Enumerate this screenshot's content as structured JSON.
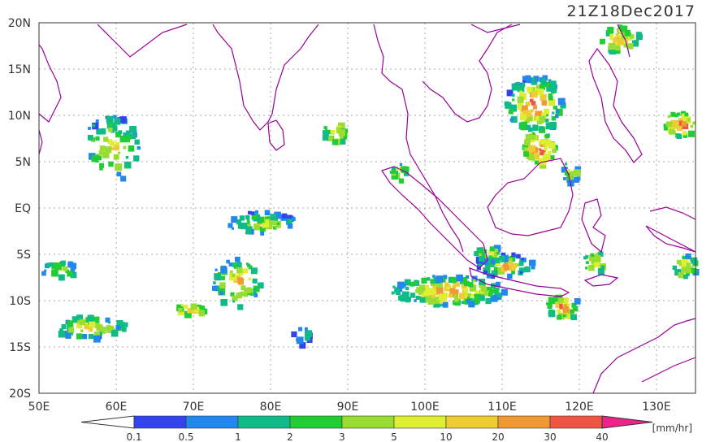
{
  "timestamp": "21Z18Dec2017",
  "lat_labels": [
    "20N",
    "15N",
    "10N",
    "5N",
    "EQ",
    "5S",
    "10S",
    "15S",
    "20S"
  ],
  "lon_labels": [
    "50E",
    "60E",
    "70E",
    "80E",
    "90E",
    "100E",
    "110E",
    "120E",
    "130E"
  ],
  "colorbar": {
    "ticks": [
      "0.1",
      "0.5",
      "1",
      "2",
      "3",
      "5",
      "10",
      "20",
      "30",
      "40"
    ],
    "unit": "[mm/hr]",
    "colors": [
      "#3344ee",
      "#2288ee",
      "#11bb88",
      "#22cc33",
      "#99dd33",
      "#ddee33",
      "#eecc33",
      "#ee9933",
      "#ee5544",
      "#ee2288"
    ]
  },
  "colors": {
    "coast": "#990099",
    "grid": "#aaaaaa",
    "frame": "#333333"
  }
}
